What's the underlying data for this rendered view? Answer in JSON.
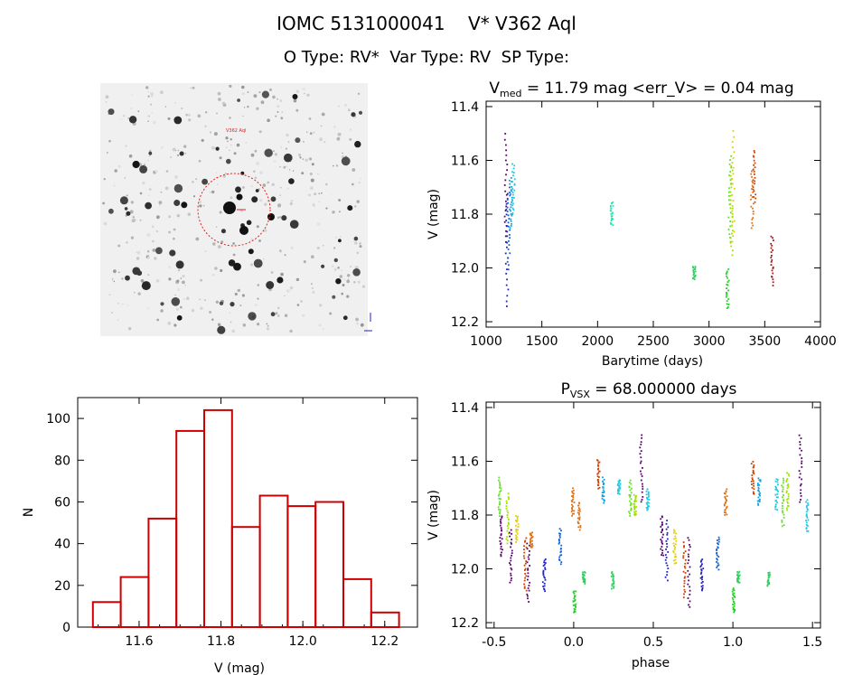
{
  "header": {
    "line1": "IOMC 5131000041    V* V362 Aql",
    "line2": "O Type: RV*  Var Type: RV  SP Type:"
  },
  "finder": {
    "label": "V362 Aql"
  },
  "chart_data": [
    {
      "type": "scatter",
      "name": "lightcurve",
      "title_main": "V",
      "title_sub": "med",
      "title_rest": " = 11.79 mag <err_V> = 0.04 mag",
      "xlabel": "Barytime (days)",
      "ylabel": "V (mag)",
      "xlim": [
        1000,
        4000
      ],
      "ylim": [
        12.22,
        11.38
      ],
      "xticks": [
        1000,
        1500,
        2000,
        2500,
        3000,
        3500,
        4000
      ],
      "yticks": [
        11.4,
        11.6,
        11.8,
        12.0,
        12.2
      ],
      "groups": [
        {
          "x": 1170,
          "ymin": 11.5,
          "ymax": 11.9,
          "color": "#5a0070"
        },
        {
          "x": 1180,
          "ymin": 11.72,
          "ymax": 12.14,
          "color": "#2020c8"
        },
        {
          "x": 1195,
          "ymin": 11.7,
          "ymax": 12.0,
          "color": "#1060d8"
        },
        {
          "x": 1215,
          "ymin": 11.66,
          "ymax": 11.85,
          "color": "#10a0e0"
        },
        {
          "x": 1240,
          "ymin": 11.61,
          "ymax": 11.8,
          "color": "#20c8e0"
        },
        {
          "x": 2120,
          "ymin": 11.75,
          "ymax": 11.84,
          "color": "#30e0b0"
        },
        {
          "x": 2860,
          "ymin": 11.99,
          "ymax": 12.04,
          "color": "#30d060"
        },
        {
          "x": 3160,
          "ymin": 12.0,
          "ymax": 12.15,
          "color": "#20d020"
        },
        {
          "x": 3180,
          "ymin": 11.58,
          "ymax": 11.9,
          "color": "#60e020"
        },
        {
          "x": 3195,
          "ymin": 11.62,
          "ymax": 11.95,
          "color": "#a0e000"
        },
        {
          "x": 3210,
          "ymin": 11.49,
          "ymax": 11.9,
          "color": "#e0d000"
        },
        {
          "x": 3380,
          "ymin": 11.63,
          "ymax": 11.85,
          "color": "#e07010"
        },
        {
          "x": 3400,
          "ymin": 11.56,
          "ymax": 11.75,
          "color": "#d04000"
        },
        {
          "x": 3560,
          "ymin": 11.88,
          "ymax": 12.06,
          "color": "#b01010"
        }
      ]
    },
    {
      "type": "bar",
      "name": "histogram",
      "xlabel": "V (mag)",
      "ylabel": "N",
      "xlim": [
        11.45,
        12.28
      ],
      "ylim": [
        0,
        110
      ],
      "xticks": [
        11.6,
        11.8,
        12.0,
        12.2
      ],
      "yticks": [
        0,
        20,
        40,
        60,
        80,
        100
      ],
      "bin_width": 0.068,
      "bins": [
        {
          "left": 11.487,
          "count": 12
        },
        {
          "left": 11.555,
          "count": 24
        },
        {
          "left": 11.623,
          "count": 52
        },
        {
          "left": 11.691,
          "count": 94
        },
        {
          "left": 11.759,
          "count": 104
        },
        {
          "left": 11.827,
          "count": 48
        },
        {
          "left": 11.895,
          "count": 63
        },
        {
          "left": 11.963,
          "count": 58
        },
        {
          "left": 12.031,
          "count": 60
        },
        {
          "left": 12.099,
          "count": 23
        },
        {
          "left": 12.167,
          "count": 7
        }
      ],
      "bar_color": "#cc0000"
    },
    {
      "type": "scatter",
      "name": "phased",
      "title_main": "P",
      "title_sub": "VSX",
      "title_rest": " = 68.000000 days",
      "xlabel": "phase",
      "ylabel": "V (mag)",
      "xlim": [
        -0.55,
        1.55
      ],
      "ylim": [
        12.22,
        11.38
      ],
      "xticks": [
        -0.5,
        0.0,
        0.5,
        1.0,
        1.5
      ],
      "yticks": [
        11.4,
        11.6,
        11.8,
        12.0,
        12.2
      ],
      "groups": [
        {
          "x": -0.47,
          "ymin": 11.66,
          "ymax": 11.8,
          "color": "#60e020"
        },
        {
          "x": -0.46,
          "ymin": 11.8,
          "ymax": 11.95,
          "color": "#5a0070"
        },
        {
          "x": -0.42,
          "ymin": 11.72,
          "ymax": 11.9,
          "color": "#a0e000"
        },
        {
          "x": -0.4,
          "ymin": 11.85,
          "ymax": 12.05,
          "color": "#5a0070"
        },
        {
          "x": -0.36,
          "ymin": 11.8,
          "ymax": 11.9,
          "color": "#e0d000"
        },
        {
          "x": -0.31,
          "ymin": 11.88,
          "ymax": 12.08,
          "color": "#d04000"
        },
        {
          "x": -0.29,
          "ymin": 11.9,
          "ymax": 12.12,
          "color": "#5a0070"
        },
        {
          "x": -0.27,
          "ymin": 11.86,
          "ymax": 11.92,
          "color": "#e07010"
        },
        {
          "x": -0.19,
          "ymin": 11.96,
          "ymax": 12.08,
          "color": "#2020c8"
        },
        {
          "x": -0.09,
          "ymin": 11.85,
          "ymax": 11.98,
          "color": "#1060d8"
        },
        {
          "x": -0.01,
          "ymin": 11.7,
          "ymax": 11.8,
          "color": "#e07010"
        },
        {
          "x": 0.0,
          "ymin": 12.08,
          "ymax": 12.16,
          "color": "#20d020"
        },
        {
          "x": 0.03,
          "ymin": 11.75,
          "ymax": 11.85,
          "color": "#e07010"
        },
        {
          "x": 0.06,
          "ymin": 12.01,
          "ymax": 12.05,
          "color": "#30d060"
        },
        {
          "x": 0.15,
          "ymin": 11.59,
          "ymax": 11.7,
          "color": "#d04000"
        },
        {
          "x": 0.18,
          "ymin": 11.66,
          "ymax": 11.75,
          "color": "#10a0e0"
        },
        {
          "x": 0.24,
          "ymin": 12.01,
          "ymax": 12.07,
          "color": "#30d060"
        },
        {
          "x": 0.28,
          "ymin": 11.67,
          "ymax": 11.72,
          "color": "#20c8e0"
        },
        {
          "x": 0.35,
          "ymin": 11.67,
          "ymax": 11.8,
          "color": "#60e020"
        },
        {
          "x": 0.38,
          "ymin": 11.72,
          "ymax": 11.8,
          "color": "#a0e000"
        },
        {
          "x": 0.42,
          "ymin": 11.5,
          "ymax": 11.75,
          "color": "#5a0070"
        },
        {
          "x": 0.46,
          "ymin": 11.7,
          "ymax": 11.78,
          "color": "#20c8e0"
        },
        {
          "x": 0.55,
          "ymin": 11.8,
          "ymax": 11.95,
          "color": "#5a0070"
        },
        {
          "x": 0.58,
          "ymin": 11.82,
          "ymax": 12.04,
          "color": "#2020c8"
        },
        {
          "x": 0.63,
          "ymin": 11.85,
          "ymax": 11.98,
          "color": "#e0d000"
        },
        {
          "x": 0.69,
          "ymin": 11.9,
          "ymax": 12.1,
          "color": "#d04000"
        },
        {
          "x": 0.72,
          "ymin": 11.88,
          "ymax": 12.14,
          "color": "#5a0070"
        },
        {
          "x": 0.8,
          "ymin": 11.96,
          "ymax": 12.08,
          "color": "#2020c8"
        },
        {
          "x": 0.9,
          "ymin": 11.88,
          "ymax": 12.0,
          "color": "#1060d8"
        },
        {
          "x": 0.95,
          "ymin": 11.7,
          "ymax": 11.8,
          "color": "#e07010"
        },
        {
          "x": 1.0,
          "ymin": 12.07,
          "ymax": 12.16,
          "color": "#20d020"
        },
        {
          "x": 1.03,
          "ymin": 12.01,
          "ymax": 12.05,
          "color": "#30d060"
        },
        {
          "x": 1.12,
          "ymin": 11.6,
          "ymax": 11.72,
          "color": "#d04000"
        },
        {
          "x": 1.16,
          "ymin": 11.66,
          "ymax": 11.76,
          "color": "#10a0e0"
        },
        {
          "x": 1.22,
          "ymin": 12.01,
          "ymax": 12.06,
          "color": "#30d060"
        },
        {
          "x": 1.27,
          "ymin": 11.66,
          "ymax": 11.78,
          "color": "#20c8e0"
        },
        {
          "x": 1.31,
          "ymin": 11.66,
          "ymax": 11.84,
          "color": "#60e020"
        },
        {
          "x": 1.34,
          "ymin": 11.64,
          "ymax": 11.78,
          "color": "#a0e000"
        },
        {
          "x": 1.42,
          "ymin": 11.5,
          "ymax": 11.75,
          "color": "#5a0070"
        },
        {
          "x": 1.46,
          "ymin": 11.74,
          "ymax": 11.86,
          "color": "#20c8e0"
        }
      ]
    }
  ]
}
